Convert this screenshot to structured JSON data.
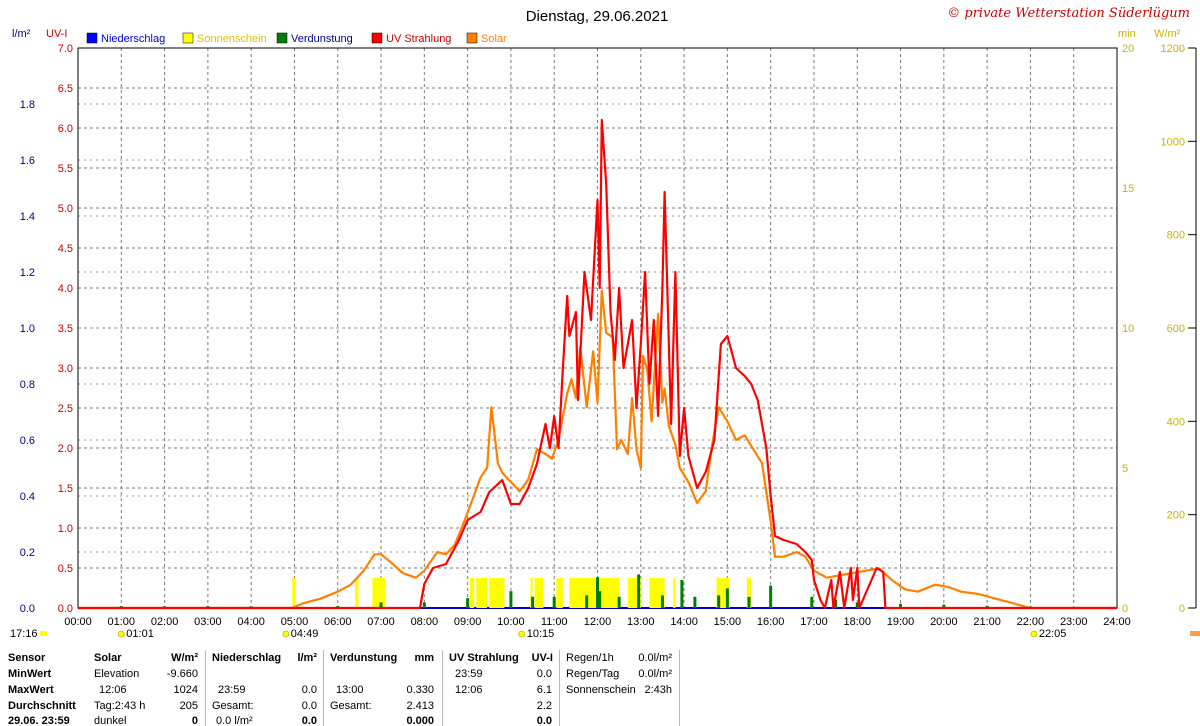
{
  "chart_data": {
    "type": "line",
    "title": "Dienstag, 29.06.2021",
    "copyright": "© private Wetterstation Süderlügum",
    "x_ticks": [
      "00:00",
      "01:00",
      "02:00",
      "03:00",
      "04:00",
      "05:00",
      "06:00",
      "07:00",
      "08:00",
      "09:00",
      "10:00",
      "11:00",
      "12:00",
      "13:00",
      "14:00",
      "15:00",
      "16:00",
      "17:00",
      "18:00",
      "19:00",
      "20:00",
      "21:00",
      "22:00",
      "23:00",
      "24:00"
    ],
    "x_range_hours": [
      0,
      24
    ],
    "left_axis_1": {
      "label": "l/m²",
      "range": [
        0,
        2.0
      ],
      "ticks": [
        "0.0",
        "0.2",
        "0.4",
        "0.6",
        "0.8",
        "1.0",
        "1.2",
        "1.4",
        "1.6",
        "1.8"
      ],
      "color": "#00008b"
    },
    "left_axis_2": {
      "label": "UV-I",
      "range": [
        0,
        7.0
      ],
      "ticks": [
        "0.0",
        "0.5",
        "1.0",
        "1.5",
        "2.0",
        "2.5",
        "3.0",
        "3.5",
        "4.0",
        "4.5",
        "5.0",
        "5.5",
        "6.0",
        "6.5",
        "7.0"
      ],
      "color": "#cc0000"
    },
    "right_axis_1": {
      "label": "min",
      "range": [
        0,
        20
      ],
      "ticks": [
        "0",
        "5",
        "10",
        "15",
        "20"
      ],
      "color": "#c8b400"
    },
    "right_axis_2": {
      "label": "W/m²",
      "range": [
        0,
        1200
      ],
      "ticks": [
        "0",
        "200",
        "400",
        "600",
        "800",
        "1000",
        "1200"
      ],
      "color": "#000000"
    },
    "grid": true,
    "legend_position": "top",
    "series": [
      {
        "name": "Niederschlag",
        "color": "#0000ff",
        "points": []
      },
      {
        "name": "Sonnenschein",
        "color": "#ffff00",
        "text_color": "#e0c000",
        "intervals": [
          [
            4.95,
            5.03
          ],
          [
            6.4,
            6.48
          ],
          [
            6.8,
            7.1
          ],
          [
            9.05,
            9.15
          ],
          [
            9.2,
            9.45
          ],
          [
            9.5,
            9.85
          ],
          [
            10.45,
            10.5
          ],
          [
            10.55,
            10.75
          ],
          [
            11.05,
            11.2
          ],
          [
            11.35,
            12.5
          ],
          [
            12.7,
            13.0
          ],
          [
            13.2,
            13.55
          ],
          [
            13.75,
            13.8
          ],
          [
            14.75,
            14.85
          ],
          [
            14.85,
            15.05
          ],
          [
            15.45,
            15.55
          ]
        ]
      },
      {
        "name": "Verdunstung",
        "color": "#008000",
        "points": [
          [
            1.0,
            0.007
          ],
          [
            2.0,
            0.006
          ],
          [
            3.0,
            0.007
          ],
          [
            4.0,
            0.006
          ],
          [
            5.0,
            0.006
          ],
          [
            6.0,
            0.007
          ],
          [
            7.0,
            0.02
          ],
          [
            8.0,
            0.02
          ],
          [
            9.0,
            0.035
          ],
          [
            10.0,
            0.06
          ],
          [
            10.5,
            0.04
          ],
          [
            11.0,
            0.04
          ],
          [
            11.75,
            0.045
          ],
          [
            12.0,
            0.11
          ],
          [
            12.05,
            0.06
          ],
          [
            12.5,
            0.04
          ],
          [
            12.95,
            0.12
          ],
          [
            13.5,
            0.045
          ],
          [
            13.95,
            0.1
          ],
          [
            14.25,
            0.04
          ],
          [
            14.8,
            0.045
          ],
          [
            15.0,
            0.07
          ],
          [
            15.5,
            0.04
          ],
          [
            16.0,
            0.08
          ],
          [
            16.95,
            0.04
          ],
          [
            17.5,
            0.03
          ],
          [
            18.0,
            0.02
          ],
          [
            19.0,
            0.015
          ],
          [
            20.0,
            0.012
          ],
          [
            21.0,
            0.008
          ],
          [
            22.0,
            0.006
          ]
        ]
      },
      {
        "name": "UV Strahlung",
        "color": "#ff0000",
        "points": [
          [
            0,
            0
          ],
          [
            7.9,
            0
          ],
          [
            8.0,
            0.3
          ],
          [
            8.2,
            0.5
          ],
          [
            8.5,
            0.55
          ],
          [
            8.8,
            0.85
          ],
          [
            9.0,
            1.1
          ],
          [
            9.3,
            1.2
          ],
          [
            9.5,
            1.45
          ],
          [
            9.8,
            1.6
          ],
          [
            10.0,
            1.3
          ],
          [
            10.2,
            1.3
          ],
          [
            10.4,
            1.5
          ],
          [
            10.6,
            1.8
          ],
          [
            10.8,
            2.3
          ],
          [
            10.9,
            2.0
          ],
          [
            11.0,
            2.4
          ],
          [
            11.1,
            2.0
          ],
          [
            11.2,
            3.0
          ],
          [
            11.3,
            3.9
          ],
          [
            11.35,
            3.4
          ],
          [
            11.5,
            3.7
          ],
          [
            11.55,
            2.6
          ],
          [
            11.7,
            4.2
          ],
          [
            11.85,
            3.6
          ],
          [
            12.0,
            5.1
          ],
          [
            12.05,
            4.0
          ],
          [
            12.1,
            6.1
          ],
          [
            12.2,
            5.3
          ],
          [
            12.3,
            3.7
          ],
          [
            12.4,
            3.1
          ],
          [
            12.5,
            4.0
          ],
          [
            12.6,
            3.0
          ],
          [
            12.8,
            3.6
          ],
          [
            12.9,
            2.5
          ],
          [
            13.0,
            3.3
          ],
          [
            13.1,
            4.2
          ],
          [
            13.2,
            2.8
          ],
          [
            13.3,
            3.6
          ],
          [
            13.4,
            2.4
          ],
          [
            13.5,
            4.0
          ],
          [
            13.55,
            5.2
          ],
          [
            13.7,
            2.3
          ],
          [
            13.8,
            4.2
          ],
          [
            13.9,
            1.9
          ],
          [
            14.0,
            2.5
          ],
          [
            14.1,
            1.9
          ],
          [
            14.3,
            1.5
          ],
          [
            14.5,
            1.7
          ],
          [
            14.7,
            2.1
          ],
          [
            14.85,
            3.3
          ],
          [
            15.0,
            3.4
          ],
          [
            15.2,
            3.0
          ],
          [
            15.4,
            2.9
          ],
          [
            15.55,
            2.8
          ],
          [
            15.7,
            2.6
          ],
          [
            15.9,
            2.0
          ],
          [
            16.0,
            1.4
          ],
          [
            16.1,
            0.9
          ],
          [
            16.3,
            0.85
          ],
          [
            16.6,
            0.8
          ],
          [
            16.8,
            0.7
          ],
          [
            16.95,
            0.6
          ],
          [
            17.0,
            0.35
          ],
          [
            17.15,
            0.1
          ],
          [
            17.25,
            0.0
          ],
          [
            17.4,
            0.35
          ],
          [
            17.45,
            0.0
          ],
          [
            17.6,
            0.45
          ],
          [
            17.7,
            0.0
          ],
          [
            17.85,
            0.5
          ],
          [
            17.9,
            0.1
          ],
          [
            18.0,
            0.5
          ],
          [
            18.05,
            0.0
          ],
          [
            18.45,
            0.5
          ],
          [
            18.6,
            0.45
          ],
          [
            18.65,
            0.0
          ],
          [
            24,
            0
          ]
        ]
      },
      {
        "name": "Solar",
        "color": "#ff8000",
        "points": [
          [
            0,
            0
          ],
          [
            4.95,
            0
          ],
          [
            5.2,
            10
          ],
          [
            5.6,
            20
          ],
          [
            6.0,
            35
          ],
          [
            6.3,
            50
          ],
          [
            6.6,
            80
          ],
          [
            6.85,
            115
          ],
          [
            7.0,
            115
          ],
          [
            7.2,
            100
          ],
          [
            7.5,
            75
          ],
          [
            7.8,
            65
          ],
          [
            8.0,
            80
          ],
          [
            8.3,
            120
          ],
          [
            8.5,
            115
          ],
          [
            8.7,
            135
          ],
          [
            8.9,
            180
          ],
          [
            9.1,
            230
          ],
          [
            9.3,
            280
          ],
          [
            9.45,
            300
          ],
          [
            9.55,
            430
          ],
          [
            9.7,
            310
          ],
          [
            9.8,
            290
          ],
          [
            10.0,
            270
          ],
          [
            10.2,
            250
          ],
          [
            10.4,
            275
          ],
          [
            10.6,
            340
          ],
          [
            10.8,
            330
          ],
          [
            10.95,
            320
          ],
          [
            11.1,
            360
          ],
          [
            11.3,
            460
          ],
          [
            11.4,
            490
          ],
          [
            11.5,
            450
          ],
          [
            11.6,
            560
          ],
          [
            11.75,
            430
          ],
          [
            11.9,
            550
          ],
          [
            12.0,
            440
          ],
          [
            12.1,
            680
          ],
          [
            12.2,
            590
          ],
          [
            12.35,
            580
          ],
          [
            12.45,
            340
          ],
          [
            12.55,
            360
          ],
          [
            12.7,
            330
          ],
          [
            12.8,
            450
          ],
          [
            12.9,
            340
          ],
          [
            13.0,
            300
          ],
          [
            13.05,
            540
          ],
          [
            13.15,
            510
          ],
          [
            13.25,
            400
          ],
          [
            13.4,
            630
          ],
          [
            13.5,
            440
          ],
          [
            13.55,
            470
          ],
          [
            13.65,
            390
          ],
          [
            13.8,
            350
          ],
          [
            13.9,
            300
          ],
          [
            14.1,
            270
          ],
          [
            14.3,
            225
          ],
          [
            14.5,
            250
          ],
          [
            14.65,
            350
          ],
          [
            14.8,
            430
          ],
          [
            15.0,
            400
          ],
          [
            15.2,
            360
          ],
          [
            15.4,
            370
          ],
          [
            15.6,
            340
          ],
          [
            15.8,
            310
          ],
          [
            16.0,
            185
          ],
          [
            16.1,
            110
          ],
          [
            16.3,
            110
          ],
          [
            16.6,
            120
          ],
          [
            16.8,
            110
          ],
          [
            17.0,
            80
          ],
          [
            17.3,
            65
          ],
          [
            17.6,
            70
          ],
          [
            17.9,
            75
          ],
          [
            18.2,
            80
          ],
          [
            18.5,
            85
          ],
          [
            18.8,
            60
          ],
          [
            19.1,
            40
          ],
          [
            19.4,
            35
          ],
          [
            19.8,
            50
          ],
          [
            20.1,
            45
          ],
          [
            20.4,
            35
          ],
          [
            20.8,
            30
          ],
          [
            21.2,
            20
          ],
          [
            21.6,
            10
          ],
          [
            22.0,
            0
          ],
          [
            24,
            0
          ]
        ]
      }
    ],
    "markers": [
      {
        "label": "01:01",
        "display": "01:01",
        "hour": 1.0
      },
      {
        "label": "04:49",
        "display": "04:49",
        "hour": 4.8
      },
      {
        "label": "10:15",
        "display": "10:15",
        "hour": 10.25
      },
      {
        "label": "22:05",
        "display": "22:05",
        "hour": 22.08
      }
    ],
    "left_corner_time": "17:16"
  },
  "stats": {
    "col_sensor": {
      "h": "Sensor",
      "r1": "MinWert",
      "r2": "MaxWert",
      "r3": "Durchschnitt",
      "r4": "29.06. 23:59"
    },
    "col_solar": {
      "h": "Solar",
      "unit": "W/m²",
      "r1a": "Elevation",
      "r1b": "-9.660",
      "r2a": "12:06",
      "r2b": "1024",
      "r3a": "Tag:2:43 h",
      "r3b": "205",
      "r4a": "dunkel",
      "r4b": "0"
    },
    "col_rain": {
      "h": "Niederschlag",
      "unit": "l/m²",
      "r2a": "23:59",
      "r2b": "0.0",
      "r3a": "Gesamt:",
      "r3b": "0.0",
      "r4a": "0.0 l/m²",
      "r4b": "0.0"
    },
    "col_evap": {
      "h": "Verdunstung",
      "unit": "mm",
      "r2a": "13:00",
      "r2b": "0.330",
      "r3a": "Gesamt:",
      "r3b": "2.413",
      "r4b": "0.000"
    },
    "col_uv": {
      "h": "UV Strahlung",
      "unit": "UV-I",
      "r1a": "23:59",
      "r1b": "0.0",
      "r2a": "12:06",
      "r2b": "6.1",
      "r3b": "2.2",
      "r4b": "0.0"
    },
    "col_extra": {
      "r1a": "Regen/1h",
      "r1b": "0.0l/m²",
      "r2a": "Regen/Tag",
      "r2b": "0.0l/m²",
      "r3a": "Sonnenschein",
      "r3b": "2:43h"
    }
  }
}
